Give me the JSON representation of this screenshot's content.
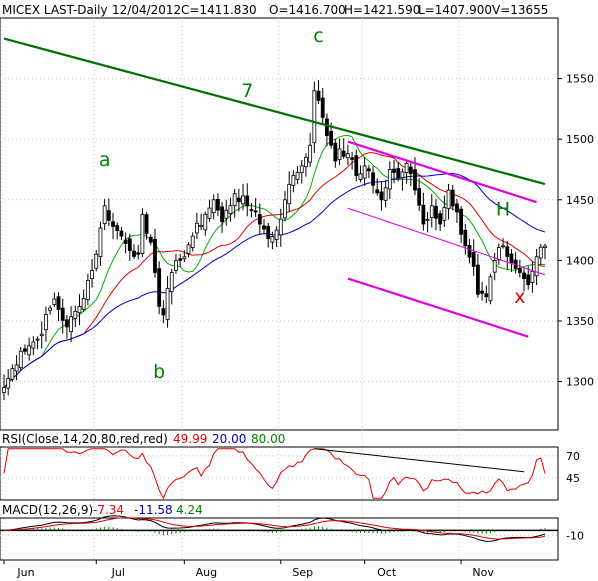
{
  "header": {
    "symbol": "MICEX LAST-Daily",
    "date": "12/04/2012",
    "close": "C=1411.830",
    "open": "O=1416.700",
    "high": "H=1421.590",
    "low": "L=1407.900",
    "volume": "V=13655"
  },
  "rsi_header": {
    "label": "RSI(Close,14,20,80,red,red)",
    "value": "49.99",
    "low_level": "20.00",
    "high_level": "80.00"
  },
  "macd_header": {
    "label": "MACD(12,26,9)",
    "macd": "-7.34",
    "signal": "-11.58",
    "hist": "4.24"
  },
  "colors": {
    "candle": "#000000",
    "ma_green": "#00b000",
    "ma_red": "#e00000",
    "ma_blue": "#0000c0",
    "channel": "#e000e0",
    "trend": "#007000",
    "label_green": "#008000",
    "label_red": "#e00000",
    "rsi": "#e00000",
    "macd": "#000000",
    "macd_signal": "#e00000",
    "macd_hist": "#008000"
  },
  "chart_data": [
    {
      "type": "candlestick",
      "title": "MICEX LAST-Daily",
      "x_ticks": [
        "Jun",
        "Jul",
        "Aug",
        "Sep",
        "Oct",
        "Nov"
      ],
      "y_ticks": [
        1300,
        1350,
        1400,
        1450,
        1500,
        1550
      ],
      "ylim": [
        1260,
        1600
      ],
      "grid": true,
      "sessions": 130,
      "month_start_index": [
        0,
        22,
        43,
        66,
        86,
        109
      ],
      "wave_labels": [
        "a",
        "b",
        "c",
        "7",
        "H",
        "x"
      ],
      "close_anchors": [
        [
          0,
          1295
        ],
        [
          4,
          1325
        ],
        [
          8,
          1335
        ],
        [
          12,
          1368
        ],
        [
          15,
          1345
        ],
        [
          18,
          1362
        ],
        [
          22,
          1405
        ],
        [
          24,
          1445
        ],
        [
          26,
          1428
        ],
        [
          28,
          1420
        ],
        [
          30,
          1408
        ],
        [
          32,
          1405
        ],
        [
          33,
          1438
        ],
        [
          35,
          1415
        ],
        [
          36,
          1390
        ],
        [
          37,
          1362
        ],
        [
          38,
          1355
        ],
        [
          40,
          1390
        ],
        [
          42,
          1400
        ],
        [
          45,
          1420
        ],
        [
          48,
          1438
        ],
        [
          50,
          1450
        ],
        [
          52,
          1432
        ],
        [
          55,
          1455
        ],
        [
          58,
          1445
        ],
        [
          60,
          1440
        ],
        [
          63,
          1418
        ],
        [
          65,
          1425
        ],
        [
          67,
          1450
        ],
        [
          69,
          1470
        ],
        [
          71,
          1478
        ],
        [
          73,
          1495
        ],
        [
          74,
          1540
        ],
        [
          75,
          1532
        ],
        [
          76,
          1518
        ],
        [
          77,
          1503
        ],
        [
          78,
          1495
        ],
        [
          79,
          1482
        ],
        [
          80,
          1492
        ],
        [
          82,
          1488
        ],
        [
          84,
          1470
        ],
        [
          86,
          1478
        ],
        [
          88,
          1462
        ],
        [
          90,
          1450
        ],
        [
          92,
          1475
        ],
        [
          94,
          1468
        ],
        [
          96,
          1480
        ],
        [
          98,
          1458
        ],
        [
          100,
          1430
        ],
        [
          102,
          1445
        ],
        [
          104,
          1430
        ],
        [
          106,
          1458
        ],
        [
          108,
          1440
        ],
        [
          110,
          1412
        ],
        [
          112,
          1395
        ],
        [
          113,
          1372
        ],
        [
          115,
          1370
        ],
        [
          117,
          1400
        ],
        [
          119,
          1412
        ],
        [
          121,
          1398
        ],
        [
          123,
          1390
        ],
        [
          125,
          1380
        ],
        [
          127,
          1403
        ],
        [
          129,
          1411.83
        ]
      ],
      "series": [
        {
          "name": "",
          "kind": "sma",
          "period": 10,
          "color": "#00b000"
        },
        {
          "name": "",
          "kind": "sma",
          "period": 20,
          "color": "#e00000"
        },
        {
          "name": "",
          "kind": "sma",
          "period": 40,
          "color": "#0000c0"
        }
      ],
      "trendlines": [
        {
          "color": "#007000",
          "from": [
            0,
            1583
          ],
          "to": [
            129,
            1463
          ]
        },
        {
          "color": "#e000e0",
          "from": [
            82,
            1498
          ],
          "to": [
            127,
            1448
          ]
        },
        {
          "color": "#e000e0",
          "from": [
            82,
            1385
          ],
          "to": [
            125,
            1337
          ]
        },
        {
          "color": "#e000e0",
          "from": [
            82,
            1443
          ],
          "to": [
            129,
            1388
          ]
        }
      ]
    },
    {
      "type": "line",
      "title": "RSI(Close,14,20,80,red,red)",
      "y_ticks": [
        45,
        70
      ],
      "levels": [
        20,
        80
      ],
      "ylim": [
        20,
        80
      ],
      "series": [
        {
          "name": "",
          "color": "#e00000"
        }
      ],
      "trendline": {
        "from": [
          74,
          78
        ],
        "to": [
          124,
          52
        ]
      },
      "last_value": 49.99
    },
    {
      "type": "line",
      "title": "MACD(12,26,9)",
      "y_ticks": [
        -10
      ],
      "ylim": [
        -60,
        25
      ],
      "series": [
        {
          "name": "",
          "color": "#000000"
        },
        {
          "name": "",
          "color": "#e00000"
        }
      ],
      "last_values": {
        "macd": -7.34,
        "signal": -11.58,
        "hist": 4.24
      }
    }
  ]
}
